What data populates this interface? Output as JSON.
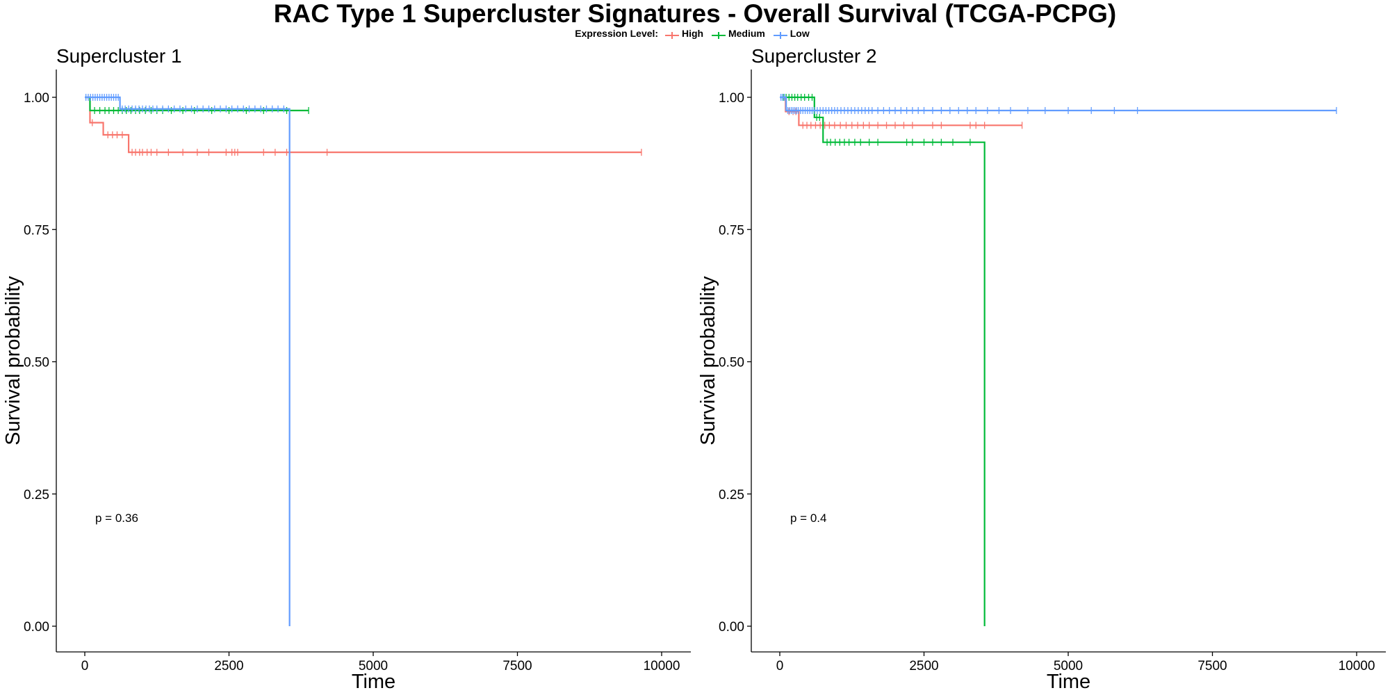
{
  "title": "RAC Type 1 Supercluster Signatures - Overall Survival (TCGA-PCPG)",
  "legend": {
    "title": "Expression Level:",
    "items": [
      {
        "label": "High",
        "color": "#F8766D"
      },
      {
        "label": "Medium",
        "color": "#00BA38"
      },
      {
        "label": "Low",
        "color": "#619CFF"
      }
    ]
  },
  "chart_data": [
    {
      "type": "line",
      "title": "Supercluster 1",
      "xlabel": "Time",
      "ylabel": "Survival probability",
      "xlim": [
        0,
        10000
      ],
      "ylim": [
        0,
        1
      ],
      "x_ticks": [
        "0",
        "2500",
        "5000",
        "7500",
        "10000"
      ],
      "y_ticks": [
        "0.00",
        "0.25",
        "0.50",
        "0.75",
        "1.00"
      ],
      "annotation": "p = 0.36",
      "grid": false,
      "series": [
        {
          "name": "High",
          "color": "#F8766D",
          "steps": [
            [
              0,
              1.0
            ],
            [
              90,
              0.952
            ],
            [
              320,
              0.929
            ],
            [
              760,
              0.896
            ],
            [
              9650,
              0.896
            ]
          ],
          "censor_times": [
            130,
            400,
            480,
            560,
            650,
            820,
            880,
            950,
            1000,
            1080,
            1150,
            1250,
            1450,
            1700,
            1950,
            2150,
            2450,
            2550,
            2600,
            2650,
            3100,
            3300,
            3500,
            4200,
            9650
          ]
        },
        {
          "name": "Medium",
          "color": "#00BA38",
          "steps": [
            [
              0,
              1.0
            ],
            [
              90,
              0.975
            ],
            [
              3880,
              0.975
            ]
          ],
          "censor_times": [
            170,
            260,
            350,
            420,
            500,
            580,
            650,
            720,
            800,
            880,
            950,
            1050,
            1150,
            1250,
            1350,
            1500,
            1700,
            1900,
            2200,
            2500,
            2800,
            3100,
            3500,
            3880
          ]
        },
        {
          "name": "Low",
          "color": "#619CFF",
          "steps": [
            [
              0,
              1.0
            ],
            [
              610,
              0.978
            ],
            [
              3550,
              0.978
            ],
            [
              3550,
              0.0
            ]
          ],
          "censor_times": [
            20,
            60,
            100,
            140,
            180,
            220,
            260,
            300,
            340,
            380,
            420,
            460,
            500,
            540,
            580,
            650,
            700,
            760,
            820,
            880,
            940,
            1000,
            1060,
            1120,
            1180,
            1250,
            1350,
            1450,
            1550,
            1650,
            1750,
            1850,
            1950,
            2050,
            2150,
            2250,
            2350,
            2450,
            2550,
            2650,
            2750,
            2850,
            2950,
            3050,
            3150,
            3250,
            3350,
            3450
          ]
        }
      ]
    },
    {
      "type": "line",
      "title": "Supercluster 2",
      "xlabel": "Time",
      "ylabel": "Survival probability",
      "xlim": [
        0,
        10000
      ],
      "ylim": [
        0,
        1
      ],
      "x_ticks": [
        "0",
        "2500",
        "5000",
        "7500",
        "10000"
      ],
      "y_ticks": [
        "0.00",
        "0.25",
        "0.50",
        "0.75",
        "1.00"
      ],
      "annotation": "p = 0.4",
      "grid": false,
      "series": [
        {
          "name": "High",
          "color": "#F8766D",
          "steps": [
            [
              0,
              1.0
            ],
            [
              100,
              0.973
            ],
            [
              330,
              0.947
            ],
            [
              4200,
              0.947
            ]
          ],
          "censor_times": [
            160,
            230,
            280,
            400,
            470,
            540,
            620,
            700,
            780,
            860,
            950,
            1050,
            1150,
            1250,
            1350,
            1450,
            1550,
            1700,
            1850,
            2000,
            2150,
            2300,
            2650,
            2800,
            3300,
            3400,
            3550,
            4200
          ]
        },
        {
          "name": "Medium",
          "color": "#00BA38",
          "steps": [
            [
              0,
              1.0
            ],
            [
              600,
              0.962
            ],
            [
              750,
              0.915
            ],
            [
              3550,
              0.915
            ],
            [
              3550,
              0.0
            ]
          ],
          "censor_times": [
            60,
            110,
            160,
            210,
            260,
            310,
            370,
            430,
            500,
            560,
            640,
            690,
            820,
            880,
            960,
            1040,
            1120,
            1200,
            1300,
            1400,
            1550,
            1700,
            2200,
            2300,
            2500,
            2650,
            2800,
            3000,
            3300
          ]
        },
        {
          "name": "Low",
          "color": "#619CFF",
          "steps": [
            [
              0,
              1.0
            ],
            [
              110,
              0.975
            ],
            [
              9650,
              0.975
            ]
          ],
          "censor_times": [
            20,
            50,
            80,
            140,
            170,
            200,
            230,
            260,
            290,
            320,
            360,
            400,
            440,
            480,
            520,
            560,
            600,
            650,
            700,
            750,
            800,
            850,
            900,
            950,
            1000,
            1060,
            1120,
            1180,
            1240,
            1300,
            1360,
            1420,
            1480,
            1540,
            1600,
            1700,
            1800,
            1900,
            2000,
            2100,
            2200,
            2300,
            2400,
            2500,
            2650,
            2800,
            2950,
            3100,
            3250,
            3400,
            3600,
            3800,
            4000,
            4300,
            4600,
            5000,
            5400,
            5800,
            6200,
            9650
          ]
        }
      ]
    }
  ]
}
